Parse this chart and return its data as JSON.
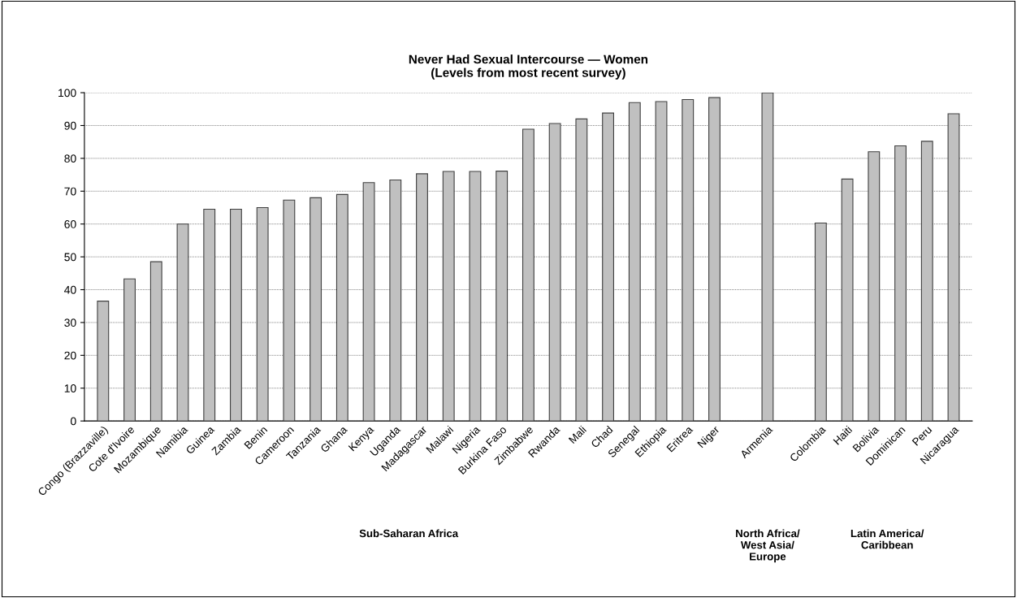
{
  "chart_data": {
    "type": "bar",
    "title": "Never Had Sexual Intercourse — Women\n(Levels from most recent survey)",
    "categories": [
      "Congo (Brazzaville)",
      "Cote d'Ivoire",
      "Mozambique",
      "Namibia",
      "Guinea",
      "Zambia",
      "Benin",
      "Cameroon",
      "Tanzania",
      "Ghana",
      "Kenya",
      "Uganda",
      "Madagascar",
      "Malawi",
      "Nigeria",
      "Burkina Faso",
      "Zimbabwe",
      "Rwanda",
      "Mali",
      "Chad",
      "Senegal",
      "Ethiopia",
      "Eritrea",
      "Niger",
      null,
      "Armenia",
      null,
      "Colombia",
      "Haiti",
      "Bolivia",
      "Dominican",
      "Peru",
      "Nicaragua"
    ],
    "values": [
      36.5,
      43.3,
      48.5,
      60.0,
      64.5,
      64.5,
      65.0,
      67.3,
      68.0,
      69.0,
      72.6,
      73.4,
      75.3,
      76.0,
      76.0,
      76.1,
      88.9,
      90.6,
      92.0,
      93.8,
      97.0,
      97.3,
      97.9,
      98.5,
      null,
      100.0,
      null,
      60.3,
      73.7,
      82.0,
      83.8,
      85.2,
      93.6
    ],
    "color": "#c0c0c0",
    "ylim": [
      0,
      100
    ],
    "yticks": [
      0,
      10,
      20,
      30,
      40,
      50,
      60,
      70,
      80,
      90,
      100
    ],
    "grid": "y",
    "annotations": [
      "Sub-Saharan Africa",
      "North Africa/\nWest Asia/\nEurope",
      "Latin America/\nCaribbean"
    ]
  }
}
